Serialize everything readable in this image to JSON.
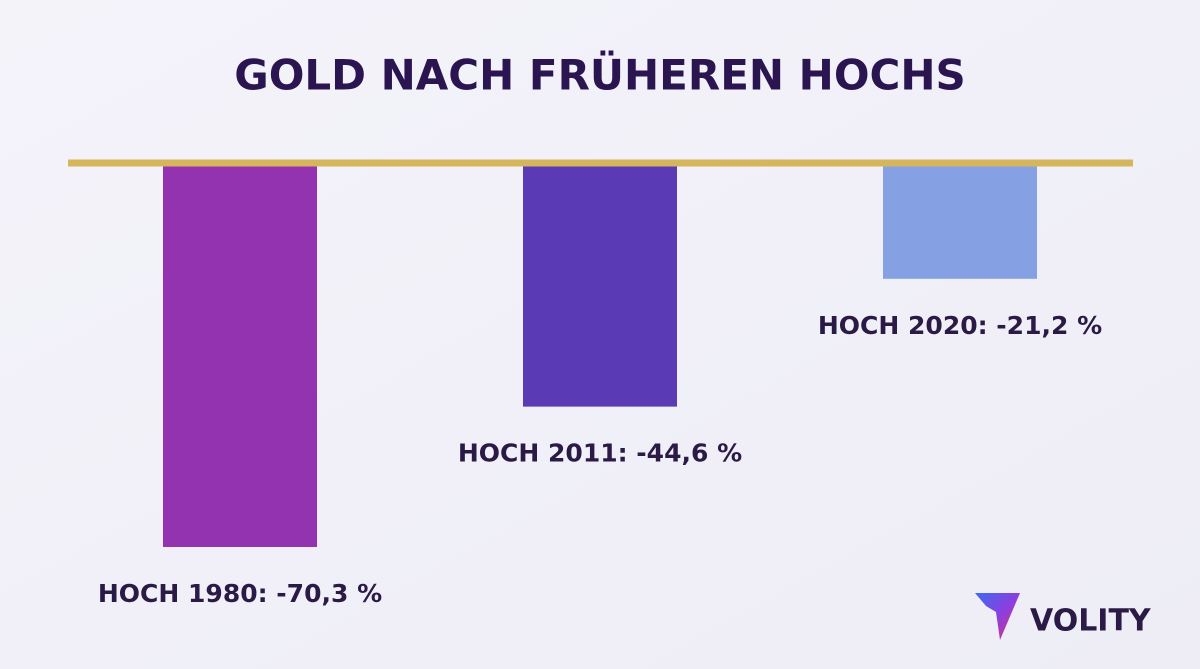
{
  "chart_data": {
    "type": "bar",
    "title": "GOLD NACH FRÜHEREN HOCHS",
    "values": [
      -70.3,
      -44.6,
      -21.2
    ],
    "value_labels": [
      "HOCH 1980: -70,3 %",
      "HOCH 2011: -44,6 %",
      "HOCH 2020: -21,2 %"
    ],
    "colors": [
      "#9333b0",
      "#5b3bb5",
      "#86a0e4"
    ],
    "baseline_color": "#d6b65c",
    "brand": "VOLITY"
  }
}
